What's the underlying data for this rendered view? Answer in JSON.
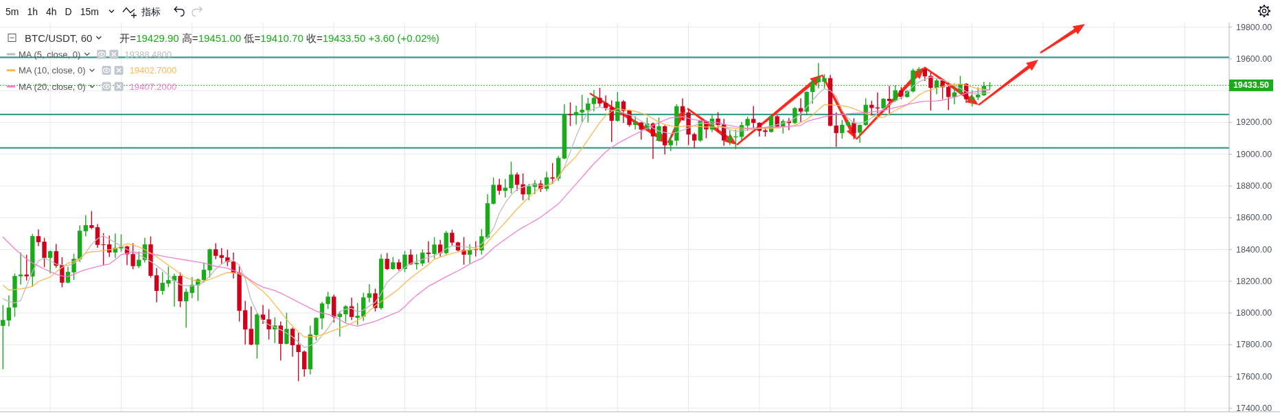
{
  "chart_data": {
    "type": "candlestick",
    "title": "BTC/USDT, 60",
    "subtitle": "开=19429.90 高=19451.00 低=19410.70 收=19433.50 +3.60 (+0.02%)",
    "annotations": [
      "5m",
      "1h",
      "4h",
      "D",
      "15m",
      "指标",
      "19388.4800",
      "19402.7000",
      "19407.2000"
    ],
    "categories": [
      null,
      null,
      null,
      null,
      null,
      null,
      null,
      null,
      null,
      null,
      null,
      null,
      null,
      null,
      null,
      null,
      null,
      null,
      null,
      null,
      null,
      null,
      null,
      null,
      null,
      null,
      null,
      null,
      null,
      null,
      null,
      null,
      null,
      null,
      null,
      null,
      null,
      null,
      null,
      null,
      null,
      null,
      null,
      null,
      null,
      null,
      null,
      null,
      null,
      null,
      null,
      null,
      null,
      null,
      null,
      null,
      null,
      null,
      null,
      null,
      null,
      null,
      null,
      null,
      null,
      null,
      null,
      null,
      null,
      null,
      null,
      null,
      null,
      null,
      null,
      null,
      null,
      null,
      null,
      null,
      null,
      null,
      null,
      null,
      null,
      null,
      null,
      null,
      null,
      null,
      null,
      null,
      null,
      null,
      null,
      null,
      null,
      null,
      null,
      null,
      null,
      null,
      null,
      null,
      null,
      null,
      null,
      null,
      null,
      null,
      null,
      null,
      null,
      null,
      null,
      null,
      null,
      null,
      null,
      null,
      null,
      null,
      null,
      null,
      null,
      null,
      null,
      null,
      null,
      null,
      null,
      null,
      null,
      null,
      null,
      null,
      null,
      null,
      null,
      null,
      null,
      null,
      null,
      null,
      null,
      null,
      null,
      null,
      null,
      null,
      null,
      null,
      null,
      null,
      null,
      null,
      null,
      null,
      null,
      null,
      null,
      null,
      null,
      null,
      null,
      null,
      null,
      null,
      null,
      null,
      null,
      null,
      null,
      null,
      null,
      null,
      null,
      null,
      null,
      null,
      null,
      null,
      null,
      null,
      null,
      null,
      null,
      null,
      null,
      null,
      null,
      null,
      null,
      null,
      null,
      null,
      null,
      null,
      null,
      null,
      null,
      null,
      null,
      null,
      null,
      null,
      null,
      null
    ],
    "ohlc": [
      [
        17919,
        18047,
        17649,
        17956
      ],
      [
        17953,
        18107,
        17919,
        18034
      ],
      [
        18035,
        18246,
        17979,
        18233
      ],
      [
        18231,
        18378,
        18182,
        18242
      ],
      [
        18242,
        18363,
        18208,
        18231
      ],
      [
        18230,
        18495,
        18168,
        18484
      ],
      [
        18484,
        18523,
        18425,
        18446
      ],
      [
        18449,
        18471,
        18291,
        18347
      ],
      [
        18347,
        18392,
        18252,
        18389
      ],
      [
        18389,
        18432,
        18288,
        18298
      ],
      [
        18302,
        18348,
        18165,
        18191
      ],
      [
        18191,
        18288,
        18190,
        18259
      ],
      [
        18256,
        18370,
        18211,
        18341
      ],
      [
        18338,
        18548,
        18324,
        18518
      ],
      [
        18515,
        18613,
        18485,
        18553
      ],
      [
        18553,
        18639,
        18531,
        18536
      ],
      [
        18540,
        18557,
        18414,
        18429
      ],
      [
        18432,
        18500,
        18302,
        18428
      ],
      [
        18432,
        18484,
        18355,
        18381
      ],
      [
        18381,
        18497,
        18350,
        18410
      ],
      [
        18407,
        18492,
        18389,
        18419
      ],
      [
        18419,
        18421,
        18305,
        18370
      ],
      [
        18371,
        18436,
        18278,
        18295
      ],
      [
        18295,
        18384,
        18286,
        18335
      ],
      [
        18334,
        18471,
        18321,
        18432
      ],
      [
        18432,
        18479,
        18226,
        18234
      ],
      [
        18237,
        18280,
        18070,
        18139
      ],
      [
        18139,
        18255,
        18118,
        18190
      ],
      [
        18185,
        18289,
        18165,
        18207
      ],
      [
        18204,
        18244,
        18043,
        18233
      ],
      [
        18233,
        18252,
        18040,
        18074
      ],
      [
        18074,
        18151,
        17910,
        18133
      ],
      [
        18126,
        18223,
        18096,
        18177
      ],
      [
        18174,
        18214,
        18079,
        18211
      ],
      [
        18208,
        18315,
        18194,
        18272
      ],
      [
        18269,
        18403,
        18226,
        18401
      ],
      [
        18401,
        18436,
        18342,
        18360
      ],
      [
        18364,
        18406,
        18309,
        18347
      ],
      [
        18350,
        18396,
        18298,
        18321
      ],
      [
        18324,
        18378,
        18220,
        18252
      ],
      [
        18254,
        18292,
        17949,
        18014
      ],
      [
        18017,
        18073,
        17805,
        17896
      ],
      [
        17900,
        18038,
        17800,
        17801
      ],
      [
        17801,
        17997,
        17716,
        17991
      ],
      [
        17990,
        18047,
        17934,
        17957
      ],
      [
        17960,
        18021,
        17836,
        17897
      ],
      [
        17897,
        17969,
        17813,
        17921
      ],
      [
        17921,
        17943,
        17704,
        17806
      ],
      [
        17806,
        17999,
        17805,
        17900
      ],
      [
        17900,
        17905,
        17728,
        17797
      ],
      [
        17800,
        17872,
        17574,
        17754
      ],
      [
        17757,
        17761,
        17603,
        17646
      ],
      [
        17646,
        17917,
        17617,
        17865
      ],
      [
        17862,
        17970,
        17830,
        17969
      ],
      [
        17966,
        18068,
        17901,
        18060
      ],
      [
        18057,
        18130,
        18028,
        18103
      ],
      [
        18103,
        18113,
        17944,
        17975
      ],
      [
        17975,
        18009,
        17854,
        17995
      ],
      [
        17992,
        18047,
        17944,
        18042
      ],
      [
        18042,
        18093,
        17959,
        17975
      ],
      [
        17970,
        18060,
        17927,
        17982
      ],
      [
        17977,
        18124,
        17954,
        18098
      ],
      [
        18096,
        18179,
        18070,
        18124
      ],
      [
        18124,
        18150,
        18013,
        18031
      ],
      [
        18031,
        18367,
        18024,
        18341
      ],
      [
        18341,
        18375,
        18273,
        18277
      ],
      [
        18277,
        18349,
        18276,
        18319
      ],
      [
        18319,
        18335,
        18269,
        18277
      ],
      [
        18277,
        18388,
        18260,
        18367
      ],
      [
        18367,
        18397,
        18305,
        18307
      ],
      [
        18307,
        18367,
        18277,
        18315
      ],
      [
        18312,
        18397,
        18299,
        18380
      ],
      [
        18380,
        18449,
        18320,
        18372
      ],
      [
        18372,
        18475,
        18346,
        18431
      ],
      [
        18431,
        18457,
        18359,
        18377
      ],
      [
        18377,
        18514,
        18372,
        18505
      ],
      [
        18505,
        18522,
        18428,
        18443
      ],
      [
        18444,
        18446,
        18391,
        18394
      ],
      [
        18397,
        18475,
        18307,
        18367
      ],
      [
        18367,
        18431,
        18315,
        18397
      ],
      [
        18401,
        18449,
        18359,
        18397
      ],
      [
        18394,
        18526,
        18371,
        18483
      ],
      [
        18475,
        18745,
        18470,
        18691
      ],
      [
        18688,
        18850,
        18686,
        18807
      ],
      [
        18807,
        18842,
        18748,
        18770
      ],
      [
        18769,
        18841,
        18730,
        18789
      ],
      [
        18786,
        18950,
        18755,
        18872
      ],
      [
        18872,
        18882,
        18773,
        18807
      ],
      [
        18810,
        18876,
        18713,
        18747
      ],
      [
        18747,
        18810,
        18713,
        18798
      ],
      [
        18794,
        18833,
        18752,
        18815
      ],
      [
        18815,
        18833,
        18765,
        18782
      ],
      [
        18782,
        18886,
        18770,
        18854
      ],
      [
        18854,
        18941,
        18817,
        18846
      ],
      [
        18846,
        18986,
        18834,
        18976
      ],
      [
        18973,
        19312,
        18970,
        19251
      ],
      [
        19251,
        19323,
        19181,
        19245
      ],
      [
        19245,
        19302,
        19190,
        19265
      ],
      [
        19263,
        19371,
        19205,
        19280
      ],
      [
        19277,
        19352,
        19203,
        19319
      ],
      [
        19316,
        19401,
        19273,
        19355
      ],
      [
        19355,
        19415,
        19302,
        19319
      ],
      [
        19323,
        19367,
        19277,
        19290
      ],
      [
        19294,
        19336,
        19080,
        19210
      ],
      [
        19210,
        19388,
        19208,
        19332
      ],
      [
        19332,
        19338,
        19199,
        19273
      ],
      [
        19276,
        19278,
        19176,
        19184
      ],
      [
        19184,
        19236,
        19158,
        19199
      ],
      [
        19199,
        19201,
        19095,
        19155
      ],
      [
        19155,
        19228,
        19154,
        19193
      ],
      [
        19193,
        19197,
        18973,
        19112
      ],
      [
        19087,
        19228,
        19083,
        19176
      ],
      [
        19176,
        19179,
        19002,
        19056
      ],
      [
        19056,
        19113,
        19022,
        19087
      ],
      [
        19085,
        19312,
        19056,
        19302
      ],
      [
        19302,
        19349,
        19215,
        19265
      ],
      [
        19263,
        19280,
        19060,
        19124
      ],
      [
        19126,
        19132,
        19040,
        19086
      ],
      [
        19086,
        19211,
        19080,
        19210
      ],
      [
        19208,
        19209,
        19103,
        19156
      ],
      [
        19156,
        19245,
        19142,
        19224
      ],
      [
        19224,
        19262,
        19142,
        19184
      ],
      [
        19187,
        19219,
        19056,
        19086
      ],
      [
        19086,
        19147,
        19060,
        19109
      ],
      [
        19106,
        19152,
        19034,
        19112
      ],
      [
        19109,
        19200,
        19089,
        19183
      ],
      [
        19180,
        19234,
        19150,
        19222
      ],
      [
        19222,
        19300,
        19162,
        19197
      ],
      [
        19197,
        19199,
        19114,
        19147
      ],
      [
        19150,
        19169,
        19114,
        19140
      ],
      [
        19140,
        19240,
        19139,
        19239
      ],
      [
        19239,
        19241,
        19166,
        19173
      ],
      [
        19173,
        19216,
        19133,
        19208
      ],
      [
        19208,
        19226,
        19154,
        19196
      ],
      [
        19196,
        19294,
        19193,
        19290
      ],
      [
        19290,
        19349,
        19202,
        19268
      ],
      [
        19268,
        19393,
        19248,
        19392
      ],
      [
        19392,
        19467,
        19320,
        19453
      ],
      [
        19453,
        19571,
        19418,
        19479
      ],
      [
        19456,
        19500,
        19418,
        19479
      ],
      [
        19479,
        19496,
        19178,
        19179
      ],
      [
        19180,
        19260,
        19049,
        19133
      ],
      [
        19133,
        19212,
        19101,
        19185
      ],
      [
        19183,
        19212,
        19179,
        19202
      ],
      [
        19199,
        19223,
        19097,
        19133
      ],
      [
        19136,
        19185,
        19075,
        19184
      ],
      [
        19183,
        19349,
        19182,
        19311
      ],
      [
        19311,
        19333,
        19245,
        19291
      ],
      [
        19294,
        19385,
        19251,
        19288
      ],
      [
        19288,
        19350,
        19287,
        19349
      ],
      [
        19349,
        19427,
        19258,
        19335
      ],
      [
        19335,
        19431,
        19332,
        19402
      ],
      [
        19402,
        19421,
        19349,
        19360
      ],
      [
        19360,
        19400,
        19359,
        19398
      ],
      [
        19395,
        19536,
        19392,
        19528
      ],
      [
        19528,
        19544,
        19507,
        19536
      ],
      [
        19536,
        19543,
        19464,
        19490
      ],
      [
        19493,
        19510,
        19277,
        19418
      ],
      [
        19418,
        19474,
        19381,
        19464
      ],
      [
        19464,
        19465,
        19349,
        19421
      ],
      [
        19424,
        19453,
        19280,
        19360
      ],
      [
        19360,
        19443,
        19317,
        19389
      ],
      [
        19389,
        19490,
        19388,
        19443
      ],
      [
        19443,
        19444,
        19327,
        19346
      ],
      [
        19346,
        19400,
        19303,
        19360
      ],
      [
        19358,
        19418,
        19343,
        19375
      ],
      [
        19371,
        19453,
        19370,
        19430
      ],
      [
        19429.9,
        19451,
        19410.7,
        19433.5
      ],
      null,
      null,
      null,
      null,
      null,
      null,
      null,
      null,
      null,
      null,
      null,
      null,
      null,
      null,
      null,
      null,
      null,
      null,
      null,
      null,
      null,
      null,
      null,
      null,
      null,
      null,
      null,
      null,
      null,
      null,
      null,
      null,
      null,
      null,
      null,
      null,
      null,
      null,
      null,
      null
    ],
    "colors": [
      "#1aaa1a",
      "#1aaa1a",
      "#1aaa1a",
      "#1aaa1a",
      "#d0021b",
      "#1aaa1a",
      "#d0021b",
      "#d0021b",
      "#1aaa1a",
      "#d0021b",
      "#d0021b",
      "#1aaa1a",
      "#1aaa1a",
      "#1aaa1a",
      "#1aaa1a",
      "#d0021b",
      "#d0021b",
      "#d0021b",
      "#d0021b",
      "#1aaa1a",
      "#1aaa1a",
      "#d0021b",
      "#d0021b",
      "#1aaa1a",
      "#1aaa1a",
      "#d0021b",
      "#d0021b",
      "#1aaa1a",
      "#1aaa1a",
      "#1aaa1a",
      "#d0021b",
      "#1aaa1a",
      "#1aaa1a",
      "#1aaa1a",
      "#1aaa1a",
      "#1aaa1a",
      "#d0021b",
      "#d0021b",
      "#d0021b",
      "#d0021b",
      "#d0021b",
      "#d0021b",
      "#d0021b",
      "#1aaa1a",
      "#d0021b",
      "#d0021b",
      "#1aaa1a",
      "#d0021b",
      "#1aaa1a",
      "#d0021b",
      "#d0021b",
      "#d0021b",
      "#1aaa1a",
      "#1aaa1a",
      "#1aaa1a",
      "#1aaa1a",
      "#d0021b",
      "#1aaa1a",
      "#1aaa1a",
      "#d0021b",
      "#1aaa1a",
      "#1aaa1a",
      "#1aaa1a",
      "#d0021b",
      "#1aaa1a",
      "#d0021b",
      "#1aaa1a",
      "#d0021b",
      "#1aaa1a",
      "#d0021b",
      "#1aaa1a",
      "#1aaa1a",
      "#d0021b",
      "#1aaa1a",
      "#d0021b",
      "#1aaa1a",
      "#d0021b",
      "#d0021b",
      "#d0021b",
      "#1aaa1a",
      "#d0021b",
      "#1aaa1a",
      "#1aaa1a",
      "#1aaa1a",
      "#d0021b",
      "#1aaa1a",
      "#1aaa1a",
      "#d0021b",
      "#d0021b",
      "#1aaa1a",
      "#1aaa1a",
      "#d0021b",
      "#1aaa1a",
      "#d0021b",
      "#1aaa1a",
      "#1aaa1a",
      "#d0021b",
      "#1aaa1a",
      "#1aaa1a",
      "#1aaa1a",
      "#1aaa1a",
      "#d0021b",
      "#d0021b",
      "#d0021b",
      "#1aaa1a",
      "#d0021b",
      "#d0021b",
      "#1aaa1a",
      "#d0021b",
      "#1aaa1a",
      "#d0021b",
      "#1aaa1a",
      "#d0021b",
      "#1aaa1a",
      "#1aaa1a",
      "#d0021b",
      "#d0021b",
      "#d0021b",
      "#1aaa1a",
      "#d0021b",
      "#1aaa1a",
      "#d0021b",
      "#d0021b",
      "#1aaa1a",
      "#1aaa1a",
      "#1aaa1a",
      "#1aaa1a",
      "#d0021b",
      "#d0021b",
      "#d0021b",
      "#1aaa1a",
      "#d0021b",
      "#1aaa1a",
      "#d0021b",
      "#1aaa1a",
      "#d0021b",
      "#1aaa1a",
      "#1aaa1a",
      "#1aaa1a",
      "#1aaa1a",
      "#d0021b",
      "#d0021b",
      "#1aaa1a",
      "#1aaa1a",
      "#d0021b",
      "#1aaa1a",
      "#1aaa1a",
      "#d0021b",
      "#d0021b",
      "#1aaa1a",
      "#d0021b",
      "#1aaa1a",
      "#d0021b",
      "#1aaa1a",
      "#1aaa1a",
      "#1aaa1a",
      "#d0021b",
      "#d0021b",
      "#1aaa1a",
      "#d0021b",
      "#d0021b",
      "#1aaa1a",
      "#1aaa1a",
      "#d0021b",
      "#1aaa1a",
      "#1aaa1a",
      "#1aaa1a",
      "#1aaa1a",
      null,
      null,
      null,
      null,
      null,
      null,
      null,
      null,
      null,
      null,
      null,
      null,
      null,
      null,
      null,
      null,
      null,
      null,
      null,
      null,
      null,
      null,
      null,
      null,
      null,
      null,
      null,
      null,
      null,
      null,
      null,
      null,
      null,
      null,
      null,
      null,
      null,
      null,
      null,
      null
    ],
    "series": [
      {
        "type": "line",
        "name": "MA (5, close, 0)",
        "color": "#bdbdbd",
        "values": [
          18089,
          18073,
          18063,
          18079,
          18171,
          18261,
          18329,
          18345,
          18329,
          18308,
          18303,
          18298,
          18313,
          18337,
          18380,
          18432,
          18467,
          18487,
          18465,
          18444,
          18421,
          18400,
          18385,
          18367,
          18346,
          18324,
          18297,
          18270,
          18238,
          18204,
          18178,
          18172,
          18170,
          18176,
          18195,
          18233,
          18276,
          18309,
          18327,
          18333,
          18300,
          18218,
          18080,
          18003,
          17950,
          17926,
          17910,
          17894,
          17873,
          17850,
          17817,
          17783,
          17795,
          17814,
          17858,
          17904,
          17961,
          18009,
          18023,
          18030,
          18006,
          18018,
          18044,
          18068,
          18122,
          18194,
          18227,
          18258,
          18286,
          18312,
          18325,
          18338,
          18350,
          18361,
          18379,
          18404,
          18423,
          18420,
          18417,
          18414,
          18411,
          18435,
          18477,
          18531,
          18629,
          18693,
          18744,
          18779,
          18793,
          18806,
          18808,
          18805,
          18802,
          18826,
          18850,
          18918,
          19015,
          19114,
          19198,
          19265,
          19288,
          19297,
          19286,
          19276,
          19268,
          19259,
          19248,
          19231,
          19209,
          19186,
          19164,
          19146,
          19137,
          19129,
          19138,
          19150,
          19165,
          19181,
          19196,
          19194,
          19191,
          19180,
          19168,
          19156,
          19143,
          19147,
          19152,
          19158,
          19164,
          19170,
          19177,
          19186,
          19196,
          19205,
          19228,
          19252,
          19296,
          19339,
          19381,
          19412,
          19400,
          19365,
          19275,
          19227,
          19196,
          19196,
          19204,
          19229,
          19256,
          19285,
          19313,
          19335,
          19356,
          19389,
          19427,
          19456,
          19471,
          19486,
          19476,
          19467,
          19451,
          19432,
          19414,
          19395,
          19378,
          19382,
          19385,
          19388,
          null,
          null,
          null,
          null,
          null,
          null,
          null,
          null,
          null,
          null,
          null,
          null,
          null,
          null,
          null,
          null,
          null,
          null,
          null,
          null,
          null,
          null,
          null,
          null,
          null,
          null,
          null,
          null,
          null,
          null,
          null,
          null,
          null,
          null,
          null,
          null,
          null,
          null,
          null,
          null
        ]
      },
      {
        "type": "line",
        "name": "MA (10, close, 0)",
        "color": "#ffb84d",
        "values": [
          18175,
          18144,
          18148,
          18152,
          18158,
          18168,
          18198,
          18213,
          18226,
          18259,
          18287,
          18314,
          18325,
          18342,
          18377,
          18386,
          18388,
          18392,
          18398,
          18405,
          18420,
          18436,
          18429,
          18416,
          18399,
          18377,
          18355,
          18328,
          18301,
          18275,
          18248,
          18221,
          18209,
          18200,
          18199,
          18212,
          18225,
          18242,
          18255,
          18253,
          18246,
          18226,
          18196,
          18165,
          18136,
          18099,
          18053,
          18007,
          17960,
          17917,
          17882,
          17848,
          17851,
          17853,
          17864,
          17877,
          17891,
          17905,
          17919,
          17935,
          17953,
          17977,
          18013,
          18046,
          18073,
          18099,
          18124,
          18153,
          18188,
          18221,
          18249,
          18277,
          18305,
          18338,
          18352,
          18365,
          18375,
          18384,
          18392,
          18398,
          18404,
          18409,
          18445,
          18489,
          18530,
          18571,
          18613,
          18655,
          18693,
          18728,
          18763,
          18788,
          18801,
          18814,
          18861,
          18912,
          18949,
          18987,
          19039,
          19092,
          19146,
          19199,
          19245,
          19270,
          19286,
          19281,
          19277,
          19270,
          19258,
          19245,
          19224,
          19202,
          19187,
          19178,
          19172,
          19175,
          19178,
          19177,
          19174,
          19171,
          19171,
          19171,
          19171,
          19167,
          19162,
          19157,
          19162,
          19162,
          19162,
          19162,
          19162,
          19166,
          19170,
          19173,
          19182,
          19200,
          19219,
          19246,
          19281,
          19312,
          19310,
          19308,
          19305,
          19298,
          19286,
          19271,
          19256,
          19243,
          19234,
          19231,
          19254,
          19275,
          19293,
          19311,
          19341,
          19372,
          19393,
          19405,
          19417,
          19426,
          19435,
          19438,
          19442,
          19435,
          19423,
          19413,
          19408,
          19403,
          null,
          null,
          null,
          null,
          null,
          null,
          null,
          null,
          null,
          null,
          null,
          null,
          null,
          null,
          null,
          null,
          null,
          null,
          null,
          null,
          null,
          null,
          null,
          null,
          null,
          null,
          null,
          null,
          null,
          null,
          null,
          null,
          null,
          null,
          null,
          null,
          null,
          null,
          null,
          null
        ]
      },
      {
        "type": "line",
        "name": "MA (20, close, 0)",
        "color": "#f47fd4",
        "values": [
          18478,
          18441,
          18403,
          18371,
          18340,
          18315,
          18296,
          18277,
          18260,
          18244,
          18233,
          18230,
          18244,
          18260,
          18273,
          18283,
          18293,
          18301,
          18308,
          18336,
          18367,
          18376,
          18384,
          18380,
          18377,
          18374,
          18366,
          18358,
          18351,
          18345,
          18339,
          18333,
          18327,
          18321,
          18314,
          18304,
          18294,
          18288,
          18282,
          18268,
          18253,
          18231,
          18204,
          18181,
          18163,
          18152,
          18141,
          18125,
          18106,
          18087,
          18068,
          18049,
          18030,
          18012,
          18000,
          17991,
          17979,
          17957,
          17936,
          17926,
          17917,
          17927,
          17937,
          17948,
          17963,
          17978,
          17994,
          18009,
          18040,
          18078,
          18111,
          18140,
          18168,
          18188,
          18208,
          18228,
          18247,
          18265,
          18286,
          18308,
          18327,
          18342,
          18374,
          18410,
          18438,
          18465,
          18491,
          18517,
          18540,
          18560,
          18581,
          18603,
          18631,
          18659,
          18687,
          18729,
          18771,
          18813,
          18855,
          18898,
          18940,
          18977,
          19015,
          19042,
          19067,
          19088,
          19107,
          19126,
          19144,
          19163,
          19182,
          19199,
          19215,
          19229,
          19233,
          19236,
          19226,
          19217,
          19212,
          19207,
          19203,
          19198,
          19189,
          19181,
          19173,
          19167,
          19162,
          19164,
          19166,
          19167,
          19169,
          19171,
          19173,
          19175,
          19177,
          19181,
          19205,
          19216,
          19226,
          19236,
          19243,
          19249,
          19251,
          19254,
          19257,
          19259,
          19262,
          19266,
          19271,
          19276,
          19284,
          19294,
          19303,
          19312,
          19320,
          19329,
          19333,
          19334,
          19335,
          19340,
          19349,
          19359,
          19371,
          19384,
          19390,
          19395,
          19401,
          19407,
          null,
          null,
          null,
          null,
          null,
          null,
          null,
          null,
          null,
          null,
          null,
          null,
          null,
          null,
          null,
          null,
          null,
          null,
          null,
          null,
          null,
          null,
          null,
          null,
          null,
          null,
          null,
          null,
          null,
          null,
          null,
          null,
          null,
          null,
          null,
          null,
          null,
          null,
          null,
          null
        ]
      }
    ],
    "ylim": [
      17378,
      19830
    ],
    "yticks": [
      {
        "value": 17400,
        "label": "17400.00"
      },
      {
        "value": 17600,
        "label": "17600.00"
      },
      {
        "value": 17800,
        "label": "17800.00"
      },
      {
        "value": 18000,
        "label": "18000.00"
      },
      {
        "value": 18200,
        "label": "18200.00"
      },
      {
        "value": 18400,
        "label": "18400.00"
      },
      {
        "value": 18600,
        "label": "18600.00"
      },
      {
        "value": 18800,
        "label": "18800.00"
      },
      {
        "value": 19000,
        "label": "19000.00"
      },
      {
        "value": 19200,
        "label": "19200.00"
      },
      {
        "value": 19400,
        "label": null
      },
      {
        "value": 19600,
        "label": "19600.00"
      },
      {
        "value": 19800,
        "label": "19800.00"
      }
    ],
    "ref_lines": [
      {
        "axis": "y",
        "value": 19610,
        "color": "#1f937c",
        "line_style": "solid"
      },
      {
        "axis": "y",
        "value": 19250,
        "color": "#1f937c",
        "line_style": "solid"
      },
      {
        "axis": "y",
        "value": 19040,
        "color": "#1f937c",
        "line_style": "solid"
      },
      {
        "axis": "y",
        "value": 19433.5,
        "label": "19433.50",
        "color": "#1aaa1a",
        "line_style": "dotted"
      }
    ],
    "grid": true,
    "legend": "top left",
    "tick_labels": "y"
  }
}
